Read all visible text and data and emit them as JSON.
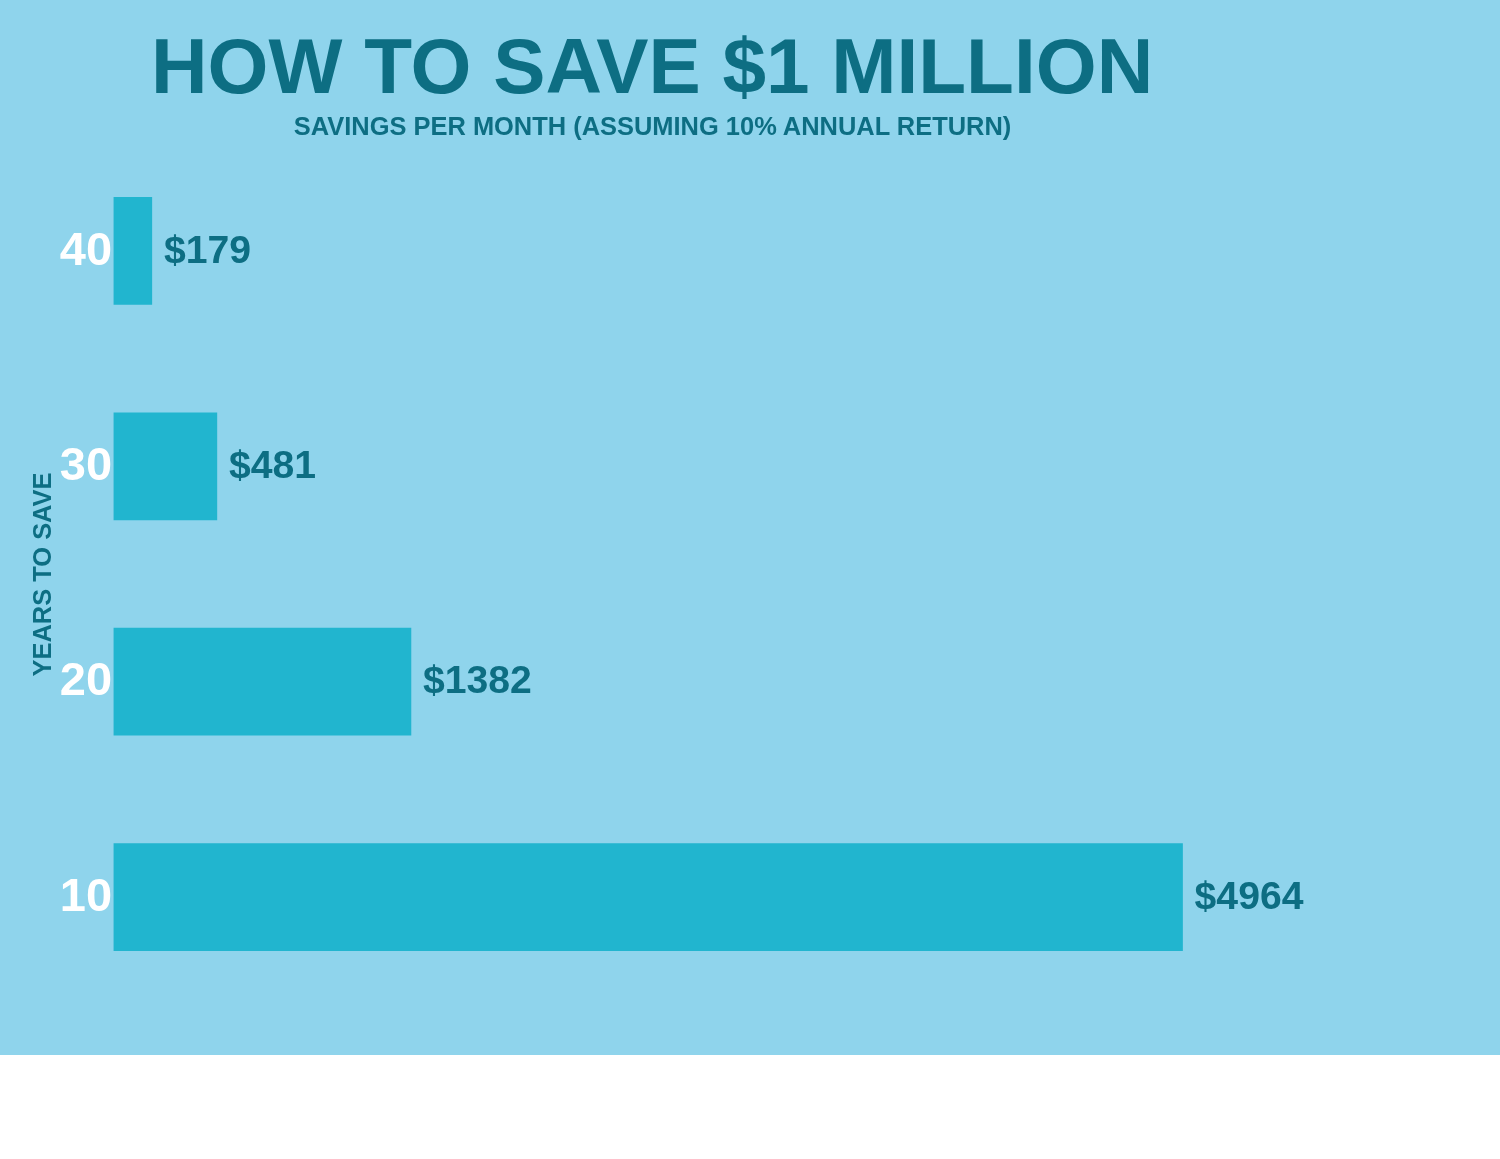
{
  "chart_data": {
    "type": "bar",
    "orientation": "horizontal",
    "title": "HOW TO SAVE $1 MILLION",
    "xlabel": "SAVINGS PER MONTH (ASSUMING 10% ANNUAL RETURN)",
    "ylabel": "YEARS TO SAVE",
    "categories": [
      "40",
      "30",
      "20",
      "10"
    ],
    "values": [
      179,
      481,
      1382,
      4964
    ],
    "color": "#21b5cf",
    "value_labels": [
      "$179",
      "$481",
      "$1382",
      "$4964"
    ],
    "tick_labels": "y",
    "grid": false
  }
}
